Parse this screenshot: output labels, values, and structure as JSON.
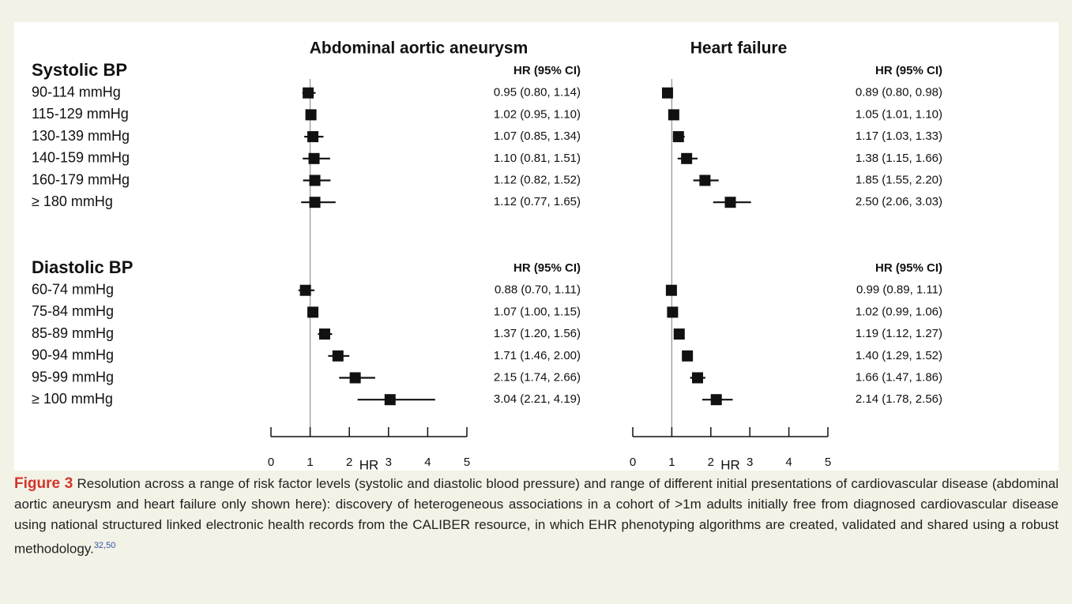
{
  "chart_data": [
    {
      "type": "forest",
      "title": "Abdominal aortic aneurysm",
      "xlabel": "HR",
      "xlim": [
        0,
        5
      ],
      "xticks": [
        0,
        1,
        2,
        3,
        4,
        5
      ],
      "ref_line": 1,
      "groups": [
        {
          "name": "Systolic BP",
          "column_header": "HR (95% CI)",
          "categories": [
            "90-114 mmHg",
            "115-129 mmHg",
            "130-139 mmHg",
            "140-159 mmHg",
            "160-179 mmHg",
            "≥ 180 mmHg"
          ],
          "values": [
            0.95,
            1.02,
            1.07,
            1.1,
            1.12,
            1.12
          ],
          "lower": [
            0.8,
            0.95,
            0.85,
            0.81,
            0.82,
            0.77
          ],
          "upper": [
            1.14,
            1.1,
            1.34,
            1.51,
            1.52,
            1.65
          ],
          "value_labels": [
            "0.95 (0.80, 1.14)",
            "1.02 (0.95, 1.10)",
            "1.07 (0.85, 1.34)",
            "1.10 (0.81, 1.51)",
            "1.12 (0.82, 1.52)",
            "1.12 (0.77, 1.65)"
          ]
        },
        {
          "name": "Diastolic BP",
          "column_header": "HR (95% CI)",
          "categories": [
            "60-74 mmHg",
            "75-84 mmHg",
            "85-89 mmHg",
            "90-94 mmHg",
            "95-99 mmHg",
            "≥ 100 mmHg"
          ],
          "values": [
            0.88,
            1.07,
            1.37,
            1.71,
            2.15,
            3.04
          ],
          "lower": [
            0.7,
            1.0,
            1.2,
            1.46,
            1.74,
            2.21
          ],
          "upper": [
            1.11,
            1.15,
            1.56,
            2.0,
            2.66,
            4.19
          ],
          "value_labels": [
            "0.88 (0.70, 1.11)",
            "1.07 (1.00, 1.15)",
            "1.37 (1.20, 1.56)",
            "1.71 (1.46, 2.00)",
            "2.15 (1.74, 2.66)",
            "3.04 (2.21, 4.19)"
          ]
        }
      ]
    },
    {
      "type": "forest",
      "title": "Heart failure",
      "xlabel": "HR",
      "xlim": [
        0,
        5
      ],
      "xticks": [
        0,
        1,
        2,
        3,
        4,
        5
      ],
      "ref_line": 1,
      "groups": [
        {
          "column_header": "HR (95% CI)",
          "values": [
            0.89,
            1.05,
            1.17,
            1.38,
            1.85,
            2.5
          ],
          "lower": [
            0.8,
            1.01,
            1.03,
            1.15,
            1.55,
            2.06
          ],
          "upper": [
            0.98,
            1.1,
            1.33,
            1.66,
            2.2,
            3.03
          ],
          "value_labels": [
            "0.89 (0.80, 0.98)",
            "1.05 (1.01, 1.10)",
            "1.17 (1.03, 1.33)",
            "1.38 (1.15, 1.66)",
            "1.85 (1.55, 2.20)",
            "2.50 (2.06, 3.03)"
          ]
        },
        {
          "column_header": "HR (95% CI)",
          "values": [
            0.99,
            1.02,
            1.19,
            1.4,
            1.66,
            2.14
          ],
          "lower": [
            0.89,
            0.99,
            1.12,
            1.29,
            1.47,
            1.78
          ],
          "upper": [
            1.11,
            1.06,
            1.27,
            1.52,
            1.86,
            2.56
          ],
          "value_labels": [
            "0.99 (0.89, 1.11)",
            "1.02 (0.99, 1.06)",
            "1.19 (1.12, 1.27)",
            "1.40 (1.29, 1.52)",
            "1.66 (1.47, 1.86)",
            "2.14 (1.78, 2.56)"
          ]
        }
      ]
    }
  ],
  "caption": {
    "label": "Figure 3",
    "text": "Resolution across a range of risk factor levels (systolic and diastolic blood pressure) and range of different initial presentations of cardiovascular disease (abdominal aortic aneurysm and heart failure only shown here): discovery of heterogeneous associations in a cohort of >1m adults initially free from diagnosed cardiovascular disease using national structured linked electronic health records from the CALIBER resource, in which EHR phenotyping algorithms are created, validated and shared using a robust methodology.",
    "refs": "32,50"
  }
}
